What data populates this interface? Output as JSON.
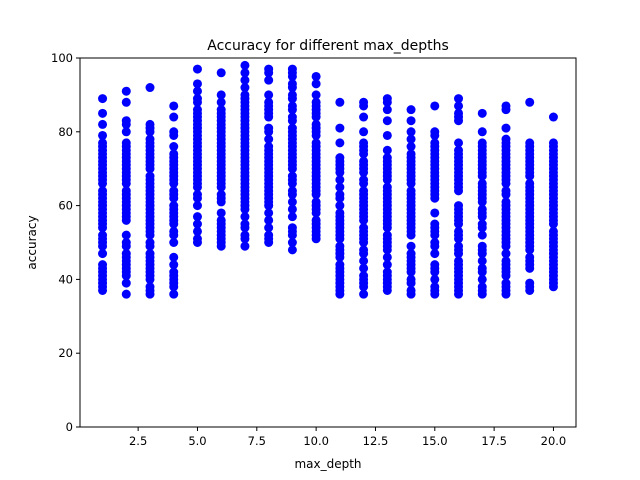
{
  "chart_data": {
    "type": "scatter",
    "title": "Accuracy for different max_depths",
    "xlabel": "max_depth",
    "ylabel": "accuracy",
    "xlim": [
      0.05,
      20.95
    ],
    "ylim": [
      0,
      100
    ],
    "xticks": [
      2.5,
      5.0,
      7.5,
      10.0,
      12.5,
      15.0,
      17.5,
      20.0
    ],
    "xtick_labels": [
      "2.5",
      "5.0",
      "7.5",
      "10.0",
      "12.5",
      "15.0",
      "17.5",
      "20.0"
    ],
    "yticks": [
      0,
      20,
      40,
      60,
      80,
      100
    ],
    "ytick_labels": [
      "0",
      "20",
      "40",
      "60",
      "80",
      "100"
    ],
    "grid": false,
    "legend": "none",
    "marker_color": "#0000ff",
    "series": [
      {
        "x": 1,
        "y": [
          37,
          38,
          39,
          40,
          41,
          42,
          43,
          44,
          47,
          49,
          50,
          51,
          52,
          54,
          55,
          56,
          57,
          58,
          59,
          60,
          61,
          62,
          63,
          64,
          66,
          67,
          68,
          69,
          70,
          71,
          72,
          73,
          74,
          75,
          76,
          77,
          79,
          82,
          85,
          89
        ]
      },
      {
        "x": 2,
        "y": [
          36,
          39,
          41,
          42,
          43,
          44,
          45,
          46,
          47,
          49,
          50,
          52,
          56,
          57,
          58,
          59,
          60,
          61,
          62,
          63,
          64,
          66,
          67,
          68,
          69,
          70,
          71,
          72,
          73,
          74,
          75,
          76,
          77,
          80,
          82,
          83,
          88,
          91
        ]
      },
      {
        "x": 3,
        "y": [
          36,
          37,
          38,
          40,
          41,
          42,
          43,
          44,
          45,
          46,
          47,
          49,
          50,
          52,
          53,
          54,
          55,
          56,
          57,
          58,
          59,
          60,
          61,
          62,
          63,
          64,
          65,
          66,
          67,
          68,
          70,
          71,
          72,
          73,
          74,
          75,
          76,
          77,
          78,
          80,
          81,
          82,
          92
        ]
      },
      {
        "x": 4,
        "y": [
          36,
          38,
          39,
          40,
          41,
          42,
          44,
          46,
          50,
          52,
          53,
          55,
          56,
          57,
          58,
          59,
          60,
          62,
          63,
          64,
          66,
          67,
          68,
          69,
          70,
          71,
          72,
          73,
          74,
          76,
          79,
          80,
          84,
          87
        ]
      },
      {
        "x": 5,
        "y": [
          50,
          51,
          53,
          55,
          57,
          60,
          62,
          63,
          65,
          66,
          67,
          68,
          69,
          70,
          71,
          72,
          73,
          74,
          75,
          76,
          77,
          78,
          79,
          80,
          81,
          82,
          83,
          84,
          85,
          86,
          88,
          89,
          91,
          93,
          97
        ]
      },
      {
        "x": 6,
        "y": [
          49,
          50,
          51,
          52,
          53,
          54,
          55,
          56,
          58,
          61,
          62,
          63,
          65,
          66,
          67,
          68,
          69,
          70,
          71,
          72,
          73,
          74,
          75,
          76,
          77,
          78,
          79,
          80,
          81,
          82,
          83,
          84,
          85,
          86,
          88,
          90,
          96
        ]
      },
      {
        "x": 7,
        "y": [
          49,
          51,
          52,
          54,
          55,
          57,
          59,
          60,
          61,
          62,
          63,
          64,
          65,
          66,
          67,
          68,
          69,
          70,
          71,
          72,
          73,
          74,
          75,
          76,
          77,
          78,
          79,
          80,
          81,
          82,
          83,
          84,
          85,
          86,
          87,
          88,
          89,
          90,
          92,
          94,
          96,
          98
        ]
      },
      {
        "x": 8,
        "y": [
          50,
          51,
          52,
          54,
          56,
          58,
          60,
          61,
          62,
          63,
          64,
          65,
          66,
          67,
          68,
          69,
          70,
          71,
          72,
          73,
          74,
          75,
          76,
          78,
          80,
          81,
          84,
          85,
          86,
          87,
          88,
          90,
          94,
          96,
          97
        ]
      },
      {
        "x": 9,
        "y": [
          48,
          50,
          52,
          53,
          54,
          57,
          59,
          61,
          63,
          64,
          66,
          67,
          68,
          70,
          71,
          72,
          73,
          74,
          75,
          76,
          77,
          78,
          79,
          80,
          81,
          83,
          84,
          86,
          87,
          89,
          90,
          92,
          93,
          95,
          96,
          97
        ]
      },
      {
        "x": 10,
        "y": [
          51,
          52,
          53,
          54,
          55,
          56,
          58,
          59,
          60,
          61,
          63,
          64,
          65,
          66,
          67,
          68,
          69,
          70,
          71,
          72,
          73,
          74,
          75,
          76,
          77,
          79,
          80,
          81,
          82,
          84,
          85,
          86,
          87,
          88,
          90,
          93,
          95
        ]
      },
      {
        "x": 11,
        "y": [
          36,
          37,
          38,
          39,
          40,
          41,
          42,
          43,
          44,
          46,
          47,
          48,
          49,
          51,
          52,
          53,
          54,
          55,
          56,
          57,
          58,
          60,
          62,
          63,
          65,
          67,
          69,
          70,
          71,
          72,
          73,
          77,
          81,
          88
        ]
      },
      {
        "x": 12,
        "y": [
          36,
          38,
          39,
          40,
          41,
          43,
          45,
          47,
          48,
          50,
          51,
          52,
          53,
          54,
          56,
          57,
          58,
          59,
          60,
          61,
          62,
          63,
          64,
          66,
          67,
          69,
          70,
          71,
          72,
          74,
          75,
          76,
          77,
          80,
          84,
          87,
          88
        ]
      },
      {
        "x": 13,
        "y": [
          37,
          38,
          39,
          40,
          41,
          42,
          44,
          46,
          48,
          49,
          50,
          51,
          52,
          54,
          55,
          56,
          57,
          58,
          59,
          60,
          61,
          62,
          63,
          64,
          65,
          67,
          68,
          69,
          70,
          71,
          72,
          73,
          75,
          79,
          83,
          86,
          88,
          89
        ]
      },
      {
        "x": 14,
        "y": [
          36,
          37,
          39,
          40,
          42,
          43,
          44,
          45,
          46,
          47,
          49,
          52,
          53,
          54,
          55,
          56,
          57,
          58,
          59,
          60,
          61,
          62,
          63,
          64,
          66,
          67,
          68,
          69,
          70,
          71,
          72,
          73,
          74,
          76,
          78,
          80,
          83,
          86
        ]
      },
      {
        "x": 15,
        "y": [
          36,
          37,
          38,
          40,
          42,
          43,
          44,
          47,
          49,
          50,
          52,
          53,
          54,
          55,
          58,
          62,
          63,
          64,
          65,
          66,
          67,
          68,
          69,
          70,
          71,
          72,
          73,
          74,
          75,
          76,
          77,
          79,
          80,
          87
        ]
      },
      {
        "x": 16,
        "y": [
          36,
          37,
          38,
          39,
          40,
          41,
          42,
          43,
          44,
          45,
          47,
          48,
          49,
          51,
          52,
          53,
          55,
          56,
          57,
          58,
          59,
          60,
          64,
          65,
          66,
          67,
          68,
          69,
          70,
          71,
          72,
          73,
          74,
          75,
          77,
          83,
          84,
          85,
          87,
          89
        ]
      },
      {
        "x": 17,
        "y": [
          36,
          37,
          38,
          40,
          42,
          43,
          45,
          47,
          48,
          49,
          52,
          54,
          55,
          57,
          58,
          59,
          61,
          62,
          63,
          64,
          65,
          66,
          68,
          69,
          70,
          71,
          72,
          73,
          74,
          75,
          76,
          77,
          80,
          85
        ]
      },
      {
        "x": 18,
        "y": [
          36,
          37,
          38,
          39,
          41,
          42,
          43,
          44,
          45,
          47,
          49,
          50,
          51,
          52,
          53,
          54,
          55,
          56,
          57,
          58,
          59,
          60,
          61,
          63,
          64,
          66,
          67,
          68,
          69,
          70,
          71,
          72,
          73,
          74,
          75,
          76,
          77,
          78,
          81,
          86,
          87
        ]
      },
      {
        "x": 19,
        "y": [
          37,
          38,
          39,
          43,
          44,
          45,
          46,
          48,
          49,
          50,
          51,
          52,
          53,
          54,
          55,
          56,
          57,
          58,
          59,
          60,
          61,
          62,
          63,
          64,
          65,
          66,
          68,
          69,
          70,
          71,
          72,
          73,
          74,
          75,
          76,
          77,
          88
        ]
      },
      {
        "x": 20,
        "y": [
          38,
          39,
          40,
          41,
          42,
          43,
          44,
          45,
          46,
          47,
          48,
          49,
          50,
          51,
          52,
          53,
          55,
          56,
          57,
          58,
          59,
          60,
          61,
          62,
          63,
          64,
          65,
          66,
          67,
          68,
          69,
          70,
          71,
          72,
          73,
          74,
          75,
          76,
          77,
          84
        ]
      }
    ]
  }
}
